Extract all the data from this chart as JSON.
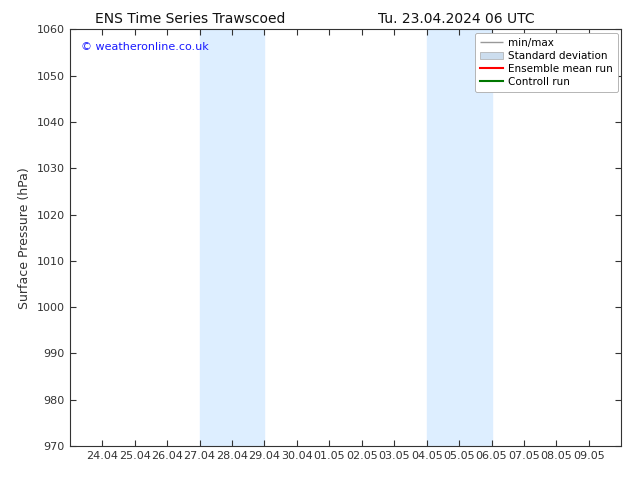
{
  "title_left": "ENS Time Series Trawscoed",
  "title_right": "Tu. 23.04.2024 06 UTC",
  "ylabel": "Surface Pressure (hPa)",
  "ylim": [
    970,
    1060
  ],
  "yticks": [
    970,
    980,
    990,
    1000,
    1010,
    1020,
    1030,
    1040,
    1050,
    1060
  ],
  "xtick_labels": [
    "24.04",
    "25.04",
    "26.04",
    "27.04",
    "28.04",
    "29.04",
    "30.04",
    "01.05",
    "02.05",
    "03.05",
    "04.05",
    "05.05",
    "06.05",
    "07.05",
    "08.05",
    "09.05"
  ],
  "xtick_days_from_start": [
    1,
    2,
    3,
    4,
    5,
    6,
    7,
    8,
    9,
    10,
    11,
    12,
    13,
    14,
    15,
    16
  ],
  "xlim": [
    0,
    17
  ],
  "shaded_bands": [
    {
      "x_start": 4,
      "x_end": 6
    },
    {
      "x_start": 11,
      "x_end": 13
    }
  ],
  "shaded_color": "#ddeeff",
  "watermark": "© weatheronline.co.uk",
  "watermark_color": "#1a1aff",
  "legend_entries": [
    {
      "label": "min/max",
      "color": "#999999",
      "lw": 1.0,
      "ls": "-",
      "type": "errorbar"
    },
    {
      "label": "Standard deviation",
      "color": "#ccddee",
      "lw": 1.0,
      "ls": "-",
      "type": "patch"
    },
    {
      "label": "Ensemble mean run",
      "color": "#ff0000",
      "lw": 1.5,
      "ls": "-",
      "type": "line"
    },
    {
      "label": "Controll run",
      "color": "#007700",
      "lw": 1.5,
      "ls": "-",
      "type": "line"
    }
  ],
  "background_color": "#ffffff",
  "tick_color": "#333333",
  "spine_color": "#333333",
  "title_fontsize": 10,
  "ylabel_fontsize": 9,
  "tick_fontsize": 8,
  "legend_fontsize": 7.5,
  "watermark_fontsize": 8
}
